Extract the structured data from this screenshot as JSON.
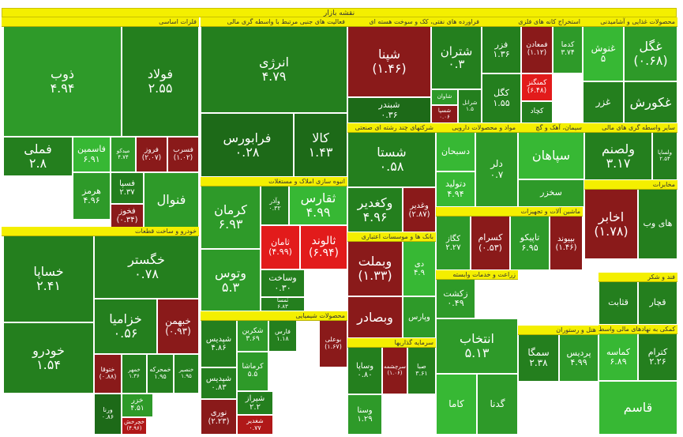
{
  "title": "نقشه بازار",
  "colors": {
    "g5": "#3fd63f",
    "g4": "#37b834",
    "g3": "#2e9a29",
    "g2": "#247f1e",
    "g1": "#1d6a18",
    "r1": "#8a1a1a",
    "r2": "#b01818",
    "r3": "#e21b1b",
    "grey": "#3a3a3a"
  },
  "sectors": [
    {
      "id": "s1",
      "label": "فلزات اساسی",
      "tiles": [
        {
          "sym": "ذوب",
          "val": "۴.۹۴",
          "c": "g3"
        },
        {
          "sym": "فولاد",
          "val": "۲.۵۵",
          "c": "g2"
        },
        {
          "sym": "فملی",
          "val": "۲.۸",
          "c": "g2"
        },
        {
          "sym": "فاسمین",
          "val": "۶.۹۱",
          "c": "g4"
        },
        {
          "sym": "میدکو",
          "val": "۴.۷۴",
          "c": "g3"
        },
        {
          "sym": "فروز",
          "val": "(۲.۰۷)",
          "c": "r1"
        },
        {
          "sym": "فسرب",
          "val": "(۱.۰۲)",
          "c": "r1"
        },
        {
          "sym": "فسپا",
          "val": "۲.۳۷",
          "c": "g2"
        },
        {
          "sym": "هرمز",
          "val": "۴.۹۶",
          "c": "g3"
        },
        {
          "sym": "فخوز",
          "val": "(۰.۳۴)",
          "c": "r1"
        },
        {
          "sym": "فنوال",
          "val": "",
          "c": "g3"
        }
      ]
    },
    {
      "id": "s2",
      "label": "فعالیت های جنبی مرتبط با واسطه گری مالی",
      "tiles": [
        {
          "sym": "انرژی",
          "val": "۴.۷۹",
          "c": "g2"
        },
        {
          "sym": "فرابورس",
          "val": "۰.۲۸",
          "c": "g1"
        },
        {
          "sym": "کالا",
          "val": "۱.۴۳",
          "c": "g1"
        }
      ]
    },
    {
      "id": "s3",
      "label": "فراورده های نفتی، کک و سوخت هسته ای",
      "tiles": [
        {
          "sym": "شپنا",
          "val": "(۱.۴۶)",
          "c": "r1"
        },
        {
          "sym": "شتران",
          "val": "۰.۳",
          "c": "g2"
        },
        {
          "sym": "شبندر",
          "val": "۰.۳۶",
          "c": "g1"
        },
        {
          "sym": "شاوان",
          "val": "",
          "c": "g3"
        },
        {
          "sym": "شسپا",
          "val": "۰.۰۶",
          "c": "r1"
        },
        {
          "sym": "شرانل",
          "val": "۱.۵",
          "c": "g2"
        }
      ]
    },
    {
      "id": "s4",
      "label": "استخراج کانه های فلزی",
      "tiles": [
        {
          "sym": "فزر",
          "val": "۱.۳۶",
          "c": "g2"
        },
        {
          "sym": "فمعادن",
          "val": "(۱.۱۲)",
          "c": "r1"
        },
        {
          "sym": "کدما",
          "val": "۳.۷۴",
          "c": "g3"
        },
        {
          "sym": "کگل",
          "val": "۱.۵۵",
          "c": "g2"
        },
        {
          "sym": "کمنگنز",
          "val": "(۶.۴۸)",
          "c": "r3"
        },
        {
          "sym": "کچاد",
          "val": "",
          "c": "g2"
        }
      ]
    },
    {
      "id": "s5",
      "label": "محصولات غذایی و آشامیدنی",
      "tiles": [
        {
          "sym": "غنوش",
          "val": "۵",
          "c": "g4"
        },
        {
          "sym": "غگل",
          "val": "(۰.۶۸)",
          "c": "g3"
        },
        {
          "sym": "غزر",
          "val": "",
          "c": "g2"
        },
        {
          "sym": "غکورش",
          "val": "",
          "c": "g2"
        }
      ]
    },
    {
      "id": "s6",
      "label": "انبوه سازی املاک و مستغلات",
      "tiles": [
        {
          "sym": "کرمان",
          "val": "۶.۹۳",
          "c": "g3"
        },
        {
          "sym": "وآذر",
          "val": "۰.۳۲",
          "c": "g2"
        },
        {
          "sym": "ثقارس",
          "val": "۴.۹۹",
          "c": "g4"
        },
        {
          "sym": "ثامان",
          "val": "(۴.۹۹)",
          "c": "r3"
        },
        {
          "sym": "ثالوند",
          "val": "(۶.۹۴)",
          "c": "r3"
        },
        {
          "sym": "وتوس",
          "val": "۵.۳",
          "c": "g3"
        },
        {
          "sym": "وساخت",
          "val": "۰.۳۰",
          "c": "g2"
        },
        {
          "sym": "ثمسا",
          "val": "۶.۸۳",
          "c": "g2"
        }
      ]
    },
    {
      "id": "s7",
      "label": "خودرو و ساخت قطعات",
      "tiles": [
        {
          "sym": "خساپا",
          "val": "۲.۴۱",
          "c": "g2"
        },
        {
          "sym": "خگستر",
          "val": "۰.۷۸",
          "c": "g2"
        },
        {
          "sym": "خزامیا",
          "val": "۰.۵۶",
          "c": "g2"
        },
        {
          "sym": "خبهمن",
          "val": "(۰.۹۳)",
          "c": "r1"
        },
        {
          "sym": "خودرو",
          "val": "۱.۵۴",
          "c": "g2"
        },
        {
          "sym": "ختوقا",
          "val": "(۰.۸۸)",
          "c": "r1"
        },
        {
          "sym": "خمهر",
          "val": "۱.۳۶",
          "c": "g2"
        },
        {
          "sym": "خمحرکه",
          "val": "۱.۹۵",
          "c": "g2"
        },
        {
          "sym": "خنصیر",
          "val": "۱.۹۵",
          "c": "g2"
        },
        {
          "sym": "خزر",
          "val": "۴.۵۱",
          "c": "g3"
        },
        {
          "sym": "ورنا",
          "val": "۰.۸۶",
          "c": "g1"
        },
        {
          "sym": "خچرخش",
          "val": "(۴.۹۶)",
          "c": "r2"
        }
      ]
    },
    {
      "id": "s8",
      "label": "محصولات شیمیایی",
      "tiles": [
        {
          "sym": "شپدیس",
          "val": "۴.۸۶",
          "c": "g2"
        },
        {
          "sym": "شکربن",
          "val": "۳.۶۹",
          "c": "g3"
        },
        {
          "sym": "فارس",
          "val": "۱.۱۸",
          "c": "g2"
        },
        {
          "sym": "شپدیس",
          "val": "۰.۸۳",
          "c": "g2"
        },
        {
          "sym": "کرماشا",
          "val": "۵.۵",
          "c": "g3"
        },
        {
          "sym": "شیراز",
          "val": "۲.۲",
          "c": "g2"
        },
        {
          "sym": "بوعلی",
          "val": "(۱.۶۷)",
          "c": "r1"
        },
        {
          "sym": "نوری",
          "val": "(۲.۲۳)",
          "c": "r1"
        },
        {
          "sym": "شغدیر",
          "val": "۰.۷۷",
          "c": "r2"
        }
      ]
    },
    {
      "id": "s9",
      "label": "بانک ها و موسسات اعتباری",
      "tiles": [
        {
          "sym": "وبملت",
          "val": "(۱.۳۳)",
          "c": "r1"
        },
        {
          "sym": "دی",
          "val": "۴.۹",
          "c": "g4"
        },
        {
          "sym": "وبصادر",
          "val": "",
          "c": "r1"
        },
        {
          "sym": "وپارس",
          "val": "",
          "c": "g3"
        }
      ]
    },
    {
      "id": "s10",
      "label": "مواد و محصولات دارویی",
      "tiles": [
        {
          "sym": "دسبحان",
          "val": "",
          "c": "g4"
        },
        {
          "sym": "دتولید",
          "val": "۴.۹۴",
          "c": "g4"
        },
        {
          "sym": "دلر",
          "val": "۰.۷",
          "c": "g3"
        }
      ]
    },
    {
      "id": "s11",
      "label": "شرکتهای چند رشته ای صنعتی",
      "tiles": [
        {
          "sym": "شستا",
          "val": "۰.۵۸",
          "c": "g2"
        },
        {
          "sym": "وکغدیر",
          "val": "۴.۹۶",
          "c": "g2"
        },
        {
          "sym": "وغدیر",
          "val": "(۲.۸۷)",
          "c": "r1"
        }
      ]
    },
    {
      "id": "s12",
      "label": "سیمان، آهک و گچ",
      "tiles": [
        {
          "sym": "سپاهان",
          "val": "",
          "c": "g4"
        },
        {
          "sym": "سخزر",
          "val": "",
          "c": "g3"
        }
      ]
    },
    {
      "id": "s13",
      "label": "سایر واسطه گری های مالی",
      "tiles": [
        {
          "sym": "ولصنم",
          "val": "۳.۱۷",
          "c": "g2"
        },
        {
          "sym": "ولساپا",
          "val": "۲.۵۴",
          "c": "g2"
        }
      ]
    },
    {
      "id": "s14",
      "label": "ماشین آلات و تجهیزات",
      "tiles": [
        {
          "sym": "کگاز",
          "val": "۲.۲۷",
          "c": "g3"
        },
        {
          "sym": "کسرام",
          "val": "(۰.۵۳)",
          "c": "r1"
        },
        {
          "sym": "تاپیکو",
          "val": "۶.۹۵",
          "c": "g3"
        },
        {
          "sym": "بپیوند",
          "val": "(۱.۴۶)",
          "c": "r1"
        }
      ]
    },
    {
      "id": "s15",
      "label": "مخابرات",
      "tiles": [
        {
          "sym": "اخابر",
          "val": "(۱.۷۸)",
          "c": "r1"
        },
        {
          "sym": "های وب",
          "val": "",
          "c": "g2"
        }
      ]
    },
    {
      "id": "s16",
      "label": "فند و شکر",
      "tiles": [
        {
          "sym": "قثابت",
          "val": "",
          "c": "g2"
        },
        {
          "sym": "قچار",
          "val": "",
          "c": "g2"
        }
      ]
    },
    {
      "id": "s17",
      "label": "سرمایه گذاریها",
      "tiles": [
        {
          "sym": "وساپا",
          "val": "۰.۸۰",
          "c": "g2"
        },
        {
          "sym": "سرچشمه",
          "val": "(۱.۰۶)",
          "c": "r1"
        },
        {
          "sym": "صبا",
          "val": "۳.۶۱",
          "c": "g2"
        },
        {
          "sym": "وسنا",
          "val": "۱.۲۹",
          "c": "g3"
        }
      ]
    },
    {
      "id": "s18",
      "label": "زراعت و خدمات وابسته",
      "tiles": [
        {
          "sym": "زکشت",
          "val": "۰.۴۹",
          "c": "g3"
        },
        {
          "sym": "انتخاب",
          "val": "۵.۱۳",
          "c": "g3"
        },
        {
          "sym": "گدنا",
          "val": "",
          "c": "g3"
        },
        {
          "sym": "کاما",
          "val": "",
          "c": "g4"
        }
      ]
    },
    {
      "id": "s19",
      "label": "هتل و رستوران",
      "tiles": [
        {
          "sym": "سمگا",
          "val": "۲.۳۸",
          "c": "g2"
        },
        {
          "sym": "پردیس",
          "val": "۴.۹۹",
          "c": "g3"
        }
      ]
    },
    {
      "id": "s20",
      "label": "فعالیت های کمکی به نهادهای مالی واسط",
      "tiles": [
        {
          "sym": "کماسه",
          "val": "۶.۸۹",
          "c": "g4"
        },
        {
          "sym": "کترام",
          "val": "۲.۲۶",
          "c": "g2"
        },
        {
          "sym": "قاسم",
          "val": "",
          "c": "g4"
        }
      ]
    }
  ],
  "layout": []
}
